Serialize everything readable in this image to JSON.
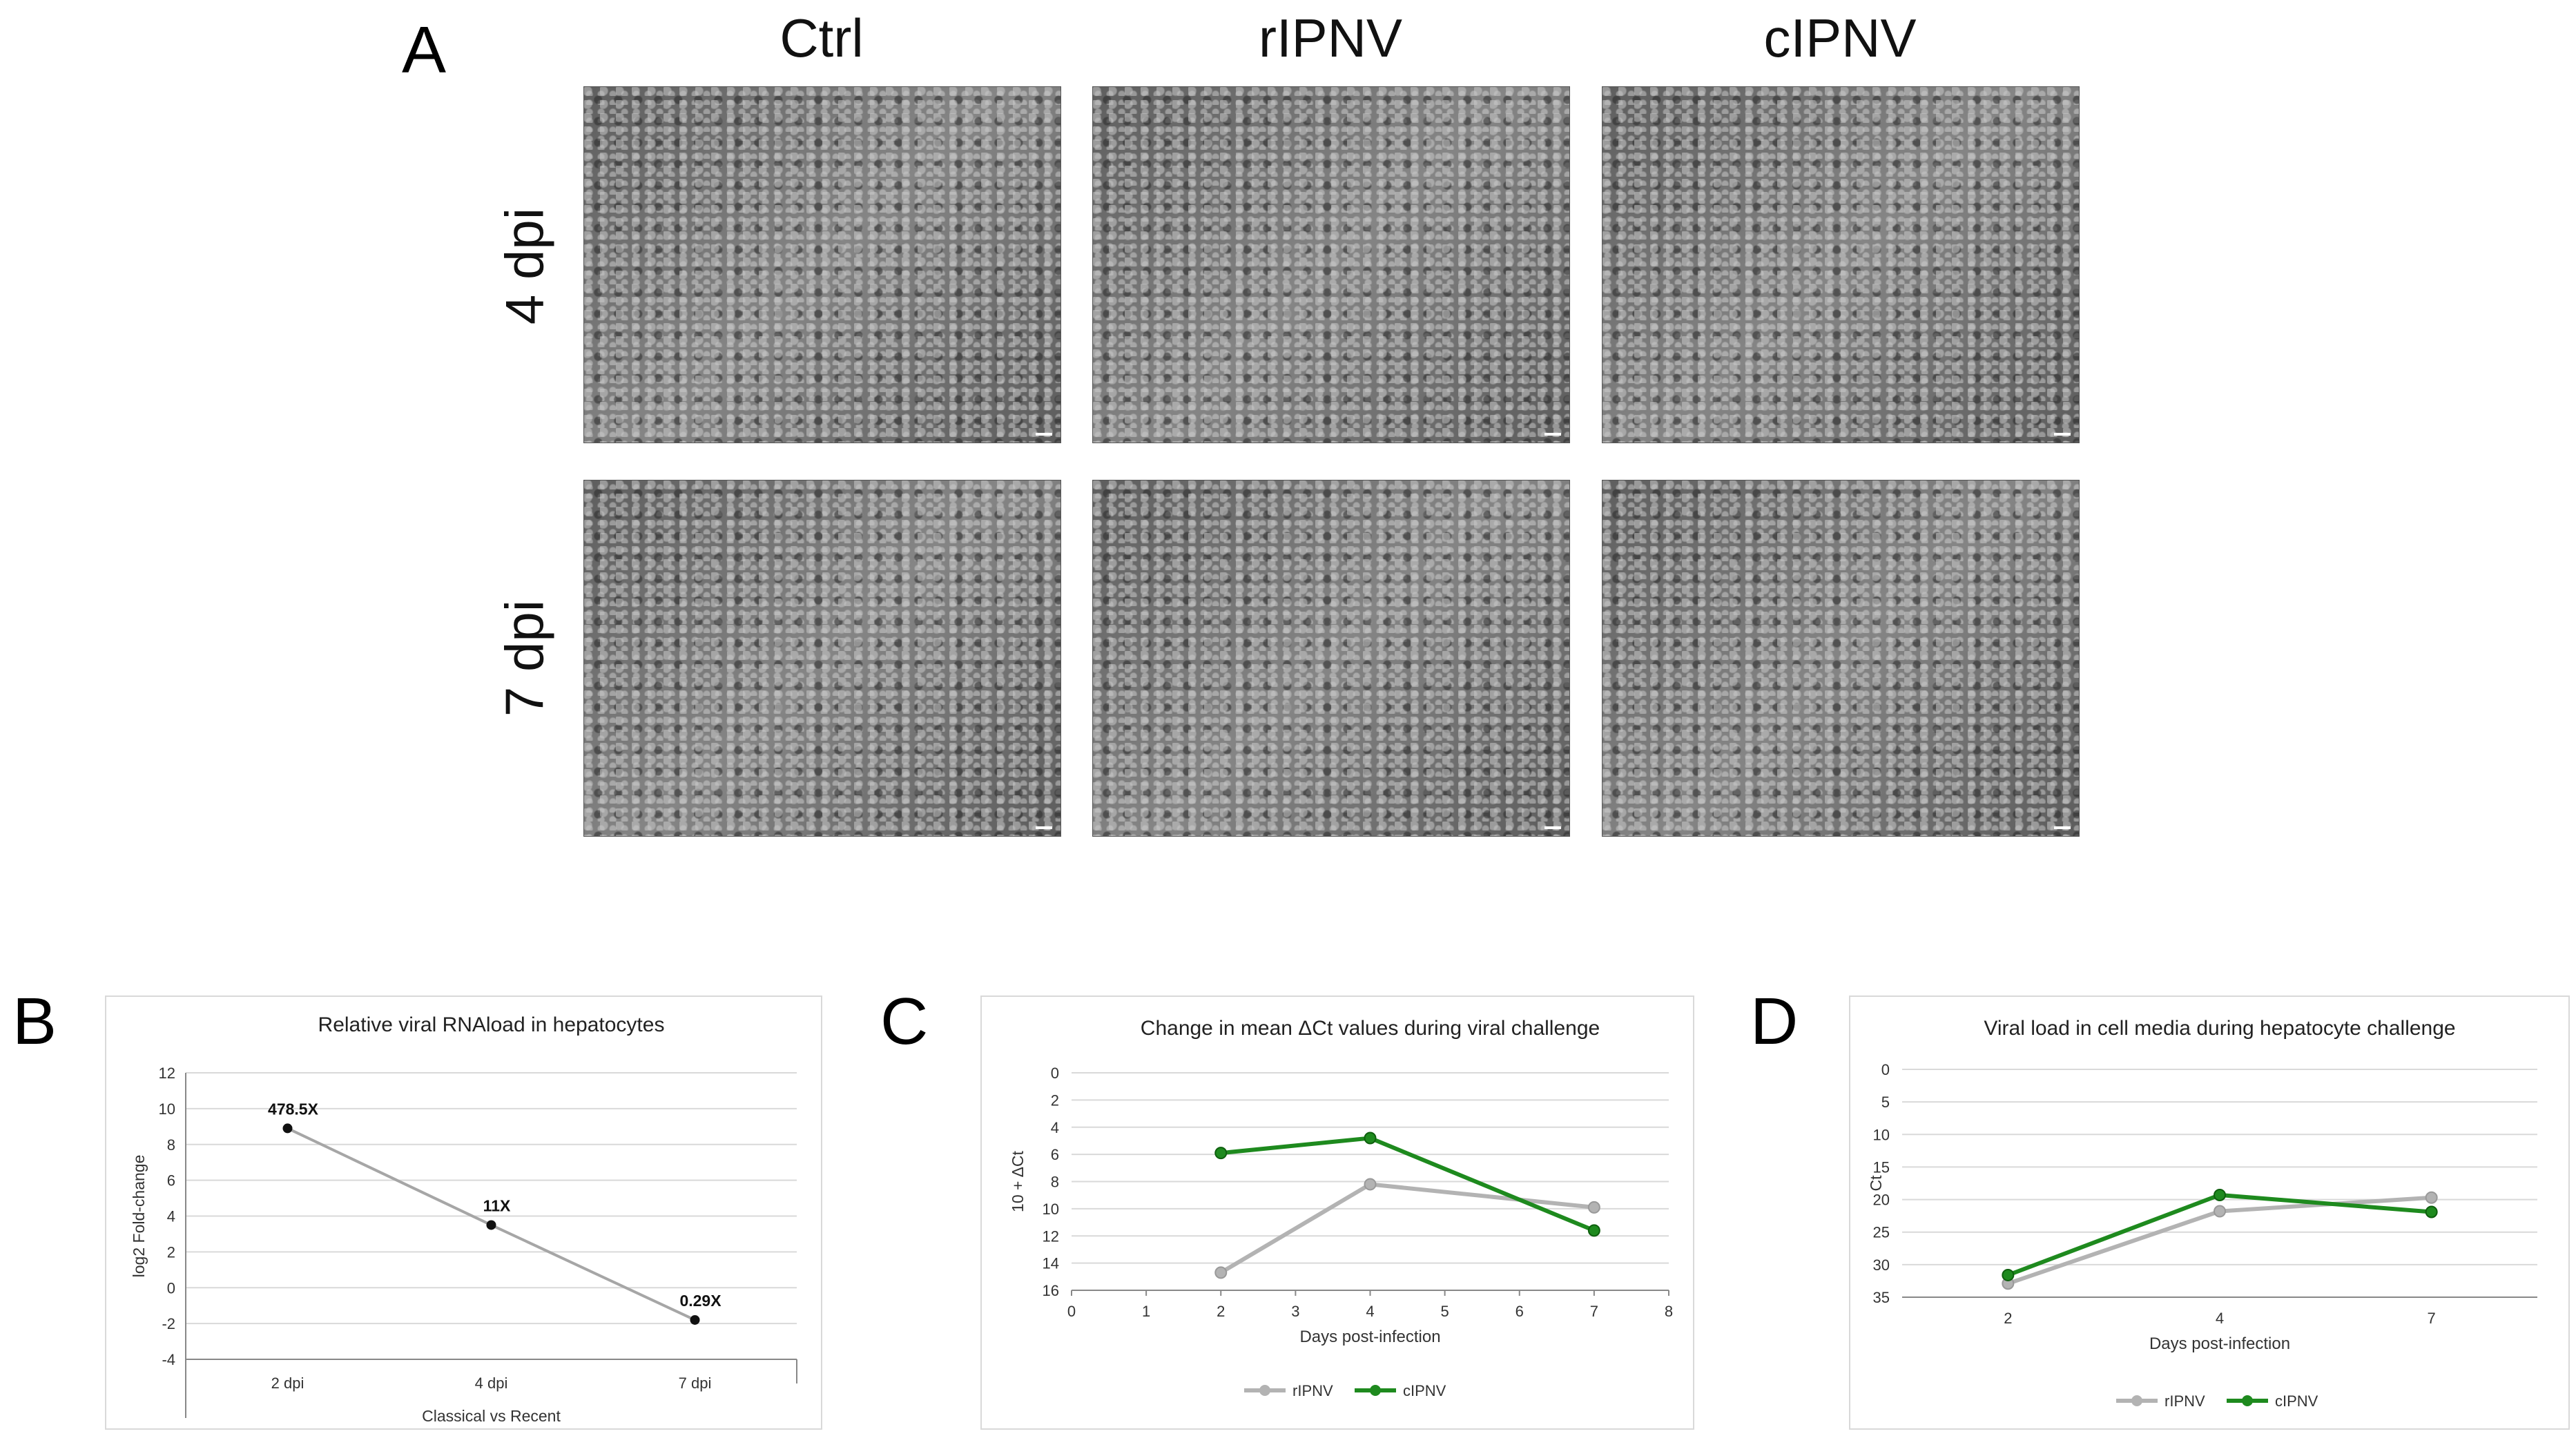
{
  "panel_a": {
    "letter": "A",
    "columns": [
      "Ctrl",
      "rIPNV",
      "cIPNV"
    ],
    "rows": [
      "4 dpi",
      "7 dpi"
    ]
  },
  "panel_b": {
    "letter": "B"
  },
  "panel_c": {
    "letter": "C"
  },
  "panel_d": {
    "letter": "D"
  },
  "colors": {
    "rIPNV": "#b3b3b3",
    "cIPNV": "#1e8a1e",
    "line_b": "#a6a6a6"
  },
  "chart_data": [
    {
      "type": "line",
      "title": "Relative viral RNAload in hepatocytes",
      "categories": [
        "2 dpi",
        "4 dpi",
        "7 dpi"
      ],
      "values": [
        8.9,
        3.5,
        -1.8
      ],
      "data_labels": [
        "478.5X",
        "11X",
        "0.29X"
      ],
      "xlabel": "Classical vs Recent",
      "ylabel": "log2 Fold-change",
      "ylim": [
        -4,
        12
      ],
      "yticks": [
        "12",
        "10",
        "8",
        "6",
        "4",
        "2",
        "0",
        "-2",
        "-4"
      ],
      "grid": true,
      "legend": "none"
    },
    {
      "type": "line",
      "title": "Change in mean ΔCt values during viral challenge",
      "x": [
        2,
        4,
        7
      ],
      "series": [
        {
          "name": "rIPNV",
          "values": [
            14.7,
            8.2,
            9.9
          ]
        },
        {
          "name": "cIPNV",
          "values": [
            5.9,
            4.8,
            11.6
          ]
        }
      ],
      "xlabel": "Days post-infection",
      "ylabel": "10 + ΔCt",
      "xlim": [
        0,
        8
      ],
      "ylim": [
        0,
        16
      ],
      "y_inverted": true,
      "xticks": [
        "0",
        "1",
        "2",
        "3",
        "4",
        "5",
        "6",
        "7",
        "8"
      ],
      "yticks": [
        "0",
        "2",
        "4",
        "6",
        "8",
        "10",
        "12",
        "14",
        "16"
      ],
      "grid": true,
      "legend": "bottom"
    },
    {
      "type": "line",
      "title": "Viral load in cell media during hepatocyte challenge",
      "categories": [
        "2",
        "4",
        "7"
      ],
      "series": [
        {
          "name": "rIPNV",
          "values": [
            32.9,
            21.8,
            19.7
          ]
        },
        {
          "name": "cIPNV",
          "values": [
            31.6,
            19.3,
            21.9
          ]
        }
      ],
      "xlabel": "Days post-infection",
      "ylabel": "Ct",
      "ylim": [
        0,
        35
      ],
      "y_inverted": true,
      "yticks": [
        "0",
        "5",
        "10",
        "15",
        "20",
        "25",
        "30",
        "35"
      ],
      "grid": true,
      "legend": "bottom"
    }
  ]
}
